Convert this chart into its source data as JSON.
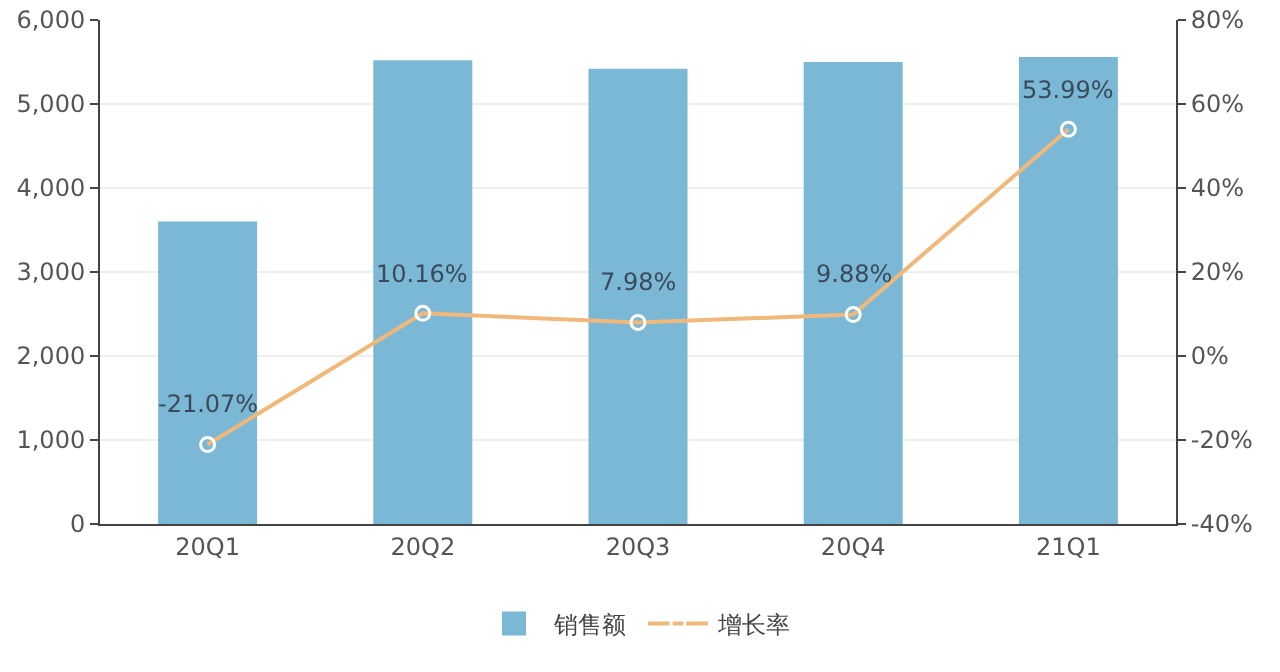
{
  "chart_data": {
    "type": "bar",
    "categories": [
      "20Q1",
      "20Q2",
      "20Q3",
      "20Q4",
      "21Q1"
    ],
    "series": [
      {
        "name": "销售额",
        "color": "#7ab8d6",
        "values": [
          3600,
          5520,
          5420,
          5500,
          5560
        ]
      },
      {
        "name": "增长率",
        "type": "line",
        "axis": "y2",
        "color": "#f0b87a",
        "marker": "circle",
        "values": [
          -21.07,
          10.16,
          7.98,
          9.88,
          53.99
        ],
        "value_labels": [
          "-21.07%",
          "10.16%",
          "7.98%",
          "9.88%",
          "53.99%"
        ]
      }
    ],
    "ylim": [
      0,
      6000
    ],
    "yticks": [
      0,
      {
        "value": 1000,
        "label": "1,000"
      },
      {
        "value": 2000,
        "label": "2,000"
      },
      {
        "value": 3000,
        "label": "3,000"
      },
      {
        "value": 4000,
        "label": "4,000"
      },
      {
        "value": 5000,
        "label": "5,000"
      },
      {
        "value": 6000,
        "label": "6,000"
      }
    ],
    "y2lim": [
      -40,
      80
    ],
    "y2ticks": [
      {
        "value": -40,
        "label": "-40%"
      },
      {
        "value": -20,
        "label": "-20%"
      },
      {
        "value": 0,
        "label": "0%"
      },
      {
        "value": 20,
        "label": "20%"
      },
      {
        "value": 40,
        "label": "40%"
      },
      {
        "value": 60,
        "label": "60%"
      },
      {
        "value": 80,
        "label": "80%"
      }
    ],
    "grid": "y",
    "legend": "bottom"
  }
}
